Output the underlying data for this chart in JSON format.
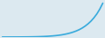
{
  "values": [
    1,
    1.1,
    1.2,
    1.3,
    1.4,
    1.5,
    1.7,
    2.0,
    2.4,
    2.9,
    3.5,
    4.3,
    5.3,
    6.5,
    8.0,
    10.0,
    12.5,
    15.5,
    19.0,
    23.5,
    29.0,
    36.0,
    44.0,
    54.0,
    66.0,
    80.0,
    97.0,
    118.0,
    143.0,
    173.0,
    209.0,
    252.0,
    304.0,
    367.0,
    443.0
  ],
  "line_color": "#3aabdc",
  "line_width": 1.2,
  "background_color": "#dce9f0"
}
